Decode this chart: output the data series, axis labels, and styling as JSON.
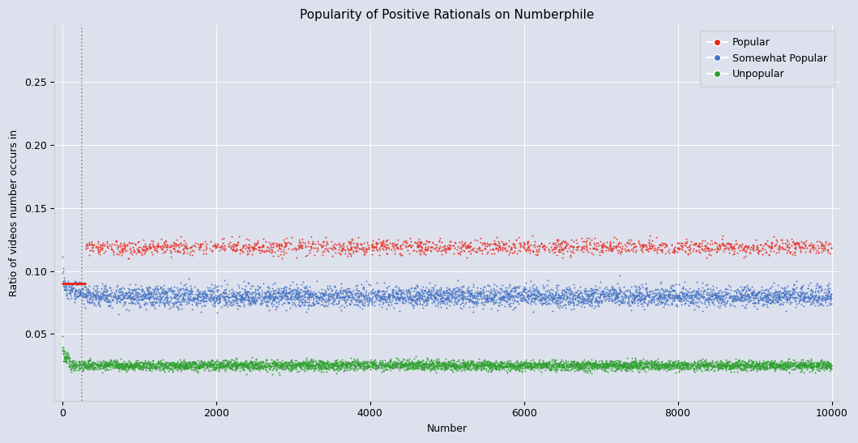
{
  "title": "Popularity of Positive Rationals on Numberphile",
  "xlabel": "Number",
  "ylabel": "Ratio of videos number occurs in",
  "xlim": [
    -100,
    10100
  ],
  "ylim": [
    -0.003,
    0.295
  ],
  "background_color": "#dde1ed",
  "axes_background_color": "#dde1ed",
  "grid_color": "#ffffff",
  "dotted_line_x": 250,
  "dotted_line_color": "#9b8b7a",
  "popular_color": "#e8291c",
  "somewhat_popular_color": "#4472c4",
  "unpopular_color": "#2ca02c",
  "popular_label": "Popular",
  "somewhat_popular_label": "Somewhat Popular",
  "unpopular_label": "Unpopular",
  "popular_base_ratio": 0.119,
  "somewhat_popular_base_ratio": 0.08,
  "unpopular_base_ratio": 0.025,
  "popular_spread": 0.003,
  "somewhat_popular_spread": 0.004,
  "unpopular_spread": 0.002,
  "n_pop": 1800,
  "n_semi": 4500,
  "n_unpop": 5000,
  "seed": 42,
  "dot_size": 2,
  "dot_alpha": 0.9,
  "title_fontsize": 11,
  "label_fontsize": 9,
  "legend_fontsize": 9
}
